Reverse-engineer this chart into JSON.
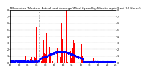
{
  "title": "Milwaukee Weather Actual and Average Wind Speed by Minute mph (Last 24 Hours)",
  "ylim": [
    0,
    8
  ],
  "yticks": [
    0,
    1,
    2,
    3,
    4,
    5,
    6,
    7,
    8
  ],
  "num_minutes": 1440,
  "bar_color": "#ff0000",
  "avg_color": "#0000ff",
  "bg_color": "#ffffff",
  "grid_color": "#999999",
  "title_fontsize": 3.2,
  "tick_fontsize": 2.5,
  "vline_x": 390,
  "vline_color": "#888888"
}
